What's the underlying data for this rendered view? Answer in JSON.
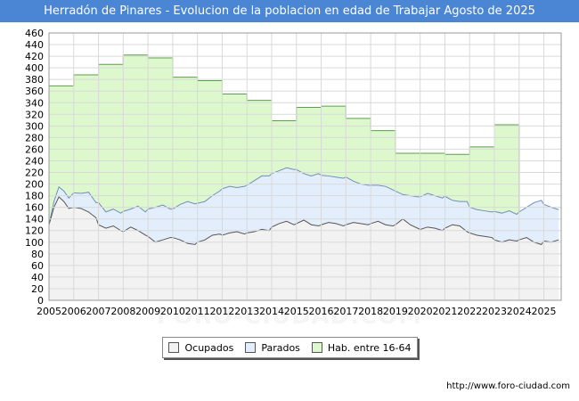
{
  "title": "Herradón de Pinares - Evolucion de la poblacion en edad de Trabajar Agosto de 2025",
  "source": "http://www.foro-ciudad.com",
  "watermark": "FORO-CIUDAD.COM",
  "colors": {
    "title_bg": "#4a86d4",
    "hab_fill": "#ddf8cc",
    "hab_line": "#5e9e4e",
    "parados_fill": "#e2eefc",
    "parados_line": "#6f8fb8",
    "ocupados_fill": "#f2f2f2",
    "ocupados_line": "#555555",
    "grid": "#d9d9d9"
  },
  "chart_data": {
    "type": "area",
    "ylim": [
      0,
      460
    ],
    "yticks": [
      0,
      20,
      40,
      60,
      80,
      100,
      120,
      140,
      160,
      180,
      200,
      220,
      240,
      260,
      280,
      300,
      320,
      340,
      360,
      380,
      400,
      420,
      440,
      460
    ],
    "xlim": [
      2005,
      2025.7
    ],
    "xticks": [
      "2005",
      "2006",
      "2007",
      "2008",
      "2009",
      "2010",
      "2011",
      "2012",
      "2013",
      "2014",
      "2015",
      "2016",
      "2017",
      "2018",
      "2019",
      "2020",
      "2021",
      "2022",
      "2023",
      "2024",
      "2025"
    ],
    "legend": [
      "Ocupados",
      "Parados",
      "Hab. entre 16-64"
    ],
    "legend_position": "bottom",
    "series": [
      {
        "name": "Hab. entre 16-64",
        "kind": "step_yearly",
        "x": [
          2005,
          2006,
          2007,
          2008,
          2009,
          2010,
          2011,
          2012,
          2013,
          2014,
          2015,
          2016,
          2017,
          2018,
          2019,
          2020,
          2021,
          2022,
          2023,
          2024
        ],
        "values": [
          369,
          388,
          406,
          422,
          417,
          384,
          378,
          355,
          344,
          309,
          332,
          334,
          313,
          292,
          253,
          253,
          251,
          264,
          302,
          0
        ]
      },
      {
        "name": "Parados",
        "kind": "total_with_ocupados",
        "x": [
          2005,
          2005.2,
          2005.4,
          2005.6,
          2005.8,
          2006,
          2006.3,
          2006.6,
          2006.9,
          2007,
          2007.3,
          2007.6,
          2007.9,
          2008,
          2008.3,
          2008.6,
          2008.9,
          2009,
          2009.3,
          2009.6,
          2009.9,
          2010,
          2010.3,
          2010.6,
          2010.9,
          2011,
          2011.3,
          2011.6,
          2011.9,
          2012,
          2012.3,
          2012.6,
          2012.9,
          2013,
          2013.3,
          2013.6,
          2013.9,
          2014,
          2014.3,
          2014.6,
          2014.9,
          2015,
          2015.3,
          2015.6,
          2015.9,
          2016,
          2016.3,
          2016.6,
          2016.9,
          2017,
          2017.3,
          2017.6,
          2017.9,
          2018,
          2018.3,
          2018.6,
          2018.9,
          2019,
          2019.3,
          2019.6,
          2019.9,
          2020,
          2020.3,
          2020.6,
          2020.9,
          2021,
          2021.3,
          2021.6,
          2021.9,
          2022,
          2022.3,
          2022.6,
          2022.9,
          2023,
          2023.3,
          2023.6,
          2023.9,
          2024,
          2024.3,
          2024.6,
          2024.9,
          2025,
          2025.3,
          2025.6
        ],
        "values": [
          130,
          170,
          195,
          188,
          176,
          185,
          184,
          186,
          168,
          168,
          152,
          157,
          150,
          153,
          157,
          162,
          152,
          157,
          160,
          164,
          157,
          157,
          165,
          170,
          166,
          167,
          170,
          180,
          188,
          192,
          196,
          194,
          196,
          198,
          206,
          214,
          214,
          218,
          223,
          228,
          225,
          225,
          218,
          214,
          218,
          215,
          214,
          212,
          210,
          212,
          205,
          200,
          198,
          198,
          198,
          196,
          190,
          188,
          182,
          180,
          178,
          178,
          184,
          180,
          176,
          179,
          172,
          170,
          170,
          160,
          156,
          154,
          152,
          153,
          150,
          154,
          148,
          152,
          160,
          168,
          172,
          165,
          160,
          156
        ]
      },
      {
        "name": "Ocupados",
        "kind": "line",
        "x": [
          2005,
          2005.2,
          2005.4,
          2005.6,
          2005.8,
          2006,
          2006.3,
          2006.6,
          2006.9,
          2007,
          2007.3,
          2007.6,
          2007.9,
          2008,
          2008.3,
          2008.6,
          2008.9,
          2009,
          2009.3,
          2009.6,
          2009.9,
          2010,
          2010.3,
          2010.6,
          2010.9,
          2011,
          2011.3,
          2011.6,
          2011.9,
          2012,
          2012.3,
          2012.6,
          2012.9,
          2013,
          2013.3,
          2013.6,
          2013.9,
          2014,
          2014.3,
          2014.6,
          2014.9,
          2015,
          2015.3,
          2015.6,
          2015.9,
          2016,
          2016.3,
          2016.6,
          2016.9,
          2017,
          2017.3,
          2017.6,
          2017.9,
          2018,
          2018.3,
          2018.6,
          2018.9,
          2019,
          2019.3,
          2019.6,
          2019.9,
          2020,
          2020.3,
          2020.6,
          2020.9,
          2021,
          2021.3,
          2021.6,
          2021.9,
          2022,
          2022.3,
          2022.6,
          2022.9,
          2023,
          2023.3,
          2023.6,
          2023.9,
          2024,
          2024.3,
          2024.6,
          2024.9,
          2025,
          2025.3,
          2025.6
        ],
        "values": [
          130,
          160,
          178,
          170,
          158,
          160,
          158,
          152,
          142,
          130,
          124,
          128,
          120,
          118,
          126,
          120,
          112,
          110,
          100,
          104,
          108,
          108,
          104,
          98,
          96,
          100,
          104,
          112,
          114,
          112,
          116,
          118,
          114,
          116,
          118,
          122,
          120,
          126,
          132,
          136,
          130,
          132,
          138,
          130,
          128,
          130,
          134,
          132,
          128,
          130,
          134,
          132,
          130,
          132,
          136,
          130,
          128,
          130,
          140,
          130,
          124,
          122,
          126,
          124,
          120,
          124,
          130,
          128,
          118,
          116,
          112,
          110,
          108,
          104,
          100,
          104,
          102,
          104,
          108,
          100,
          96,
          102,
          100,
          104
        ]
      }
    ]
  }
}
